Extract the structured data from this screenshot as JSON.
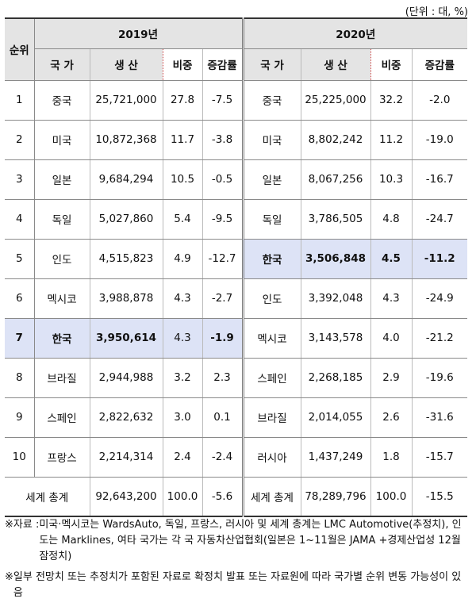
{
  "unit": "(단위 : 대, %)",
  "header": {
    "rank": "순위",
    "year2019": "2019년",
    "year2020": "2020년",
    "country": "국 가",
    "production": "생  산",
    "share": "비중",
    "change": "증감률"
  },
  "rows": [
    {
      "rank": "1",
      "c19": "중국",
      "p19": "25,721,000",
      "s19": "27.8",
      "g19": "-7.5",
      "c20": "중국",
      "p20": "25,225,000",
      "s20": "32.2",
      "g20": "-2.0"
    },
    {
      "rank": "2",
      "c19": "미국",
      "p19": "10,872,368",
      "s19": "11.7",
      "g19": "-3.8",
      "c20": "미국",
      "p20": "8,802,242",
      "s20": "11.2",
      "g20": "-19.0"
    },
    {
      "rank": "3",
      "c19": "일본",
      "p19": "9,684,294",
      "s19": "10.5",
      "g19": "-0.5",
      "c20": "일본",
      "p20": "8,067,256",
      "s20": "10.3",
      "g20": "-16.7"
    },
    {
      "rank": "4",
      "c19": "독일",
      "p19": "5,027,860",
      "s19": "5.4",
      "g19": "-9.5",
      "c20": "독일",
      "p20": "3,786,505",
      "s20": "4.8",
      "g20": "-24.7"
    },
    {
      "rank": "5",
      "c19": "인도",
      "p19": "4,515,823",
      "s19": "4.9",
      "g19": "-12.7",
      "c20": "한국",
      "p20": "3,506,848",
      "s20": "4.5",
      "g20": "-11.2"
    },
    {
      "rank": "6",
      "c19": "멕시코",
      "p19": "3,988,878",
      "s19": "4.3",
      "g19": "-2.7",
      "c20": "인도",
      "p20": "3,392,048",
      "s20": "4.3",
      "g20": "-24.9"
    },
    {
      "rank": "7",
      "c19": "한국",
      "p19": "3,950,614",
      "s19": "4.3",
      "g19": "-1.9",
      "c20": "멕시코",
      "p20": "3,143,578",
      "s20": "4.0",
      "g20": "-21.2"
    },
    {
      "rank": "8",
      "c19": "브라질",
      "p19": "2,944,988",
      "s19": "3.2",
      "g19": "2.3",
      "c20": "스페인",
      "p20": "2,268,185",
      "s20": "2.9",
      "g20": "-19.6"
    },
    {
      "rank": "9",
      "c19": "스페인",
      "p19": "2,822,632",
      "s19": "3.0",
      "g19": "0.1",
      "c20": "브라질",
      "p20": "2,014,055",
      "s20": "2.6",
      "g20": "-31.6"
    },
    {
      "rank": "10",
      "c19": "프랑스",
      "p19": "2,214,314",
      "s19": "2.4",
      "g19": "-2.4",
      "c20": "러시아",
      "p20": "1,437,249",
      "s20": "1.8",
      "g20": "-15.7"
    }
  ],
  "total": {
    "label19": "세계 총계",
    "p19": "92,643,200",
    "s19": "100.0",
    "g19": "-5.6",
    "label20": "세계 총계",
    "p20": "78,289,796",
    "s20": "100.0",
    "g20": "-15.5"
  },
  "notes": {
    "note1_mark": "※자료 :",
    "note1_text": "미국·멕시코는 WardsAuto, 독일, 프랑스, 러시아 및 세계 총계는 LMC Automotive(추정치), 인도는 Marklines, 여타 국가는 각 국 자동차산업협회(일본은 1~11월은 JAMA +경제산업성 12월 잠정치)",
    "note2_mark": "※",
    "note2_text": "일부 전망치 또는 추정치가 포함된 자료로 확정치 발표 또는 자료원에 따라 국가별 순위 변동 가능성이 있음"
  }
}
